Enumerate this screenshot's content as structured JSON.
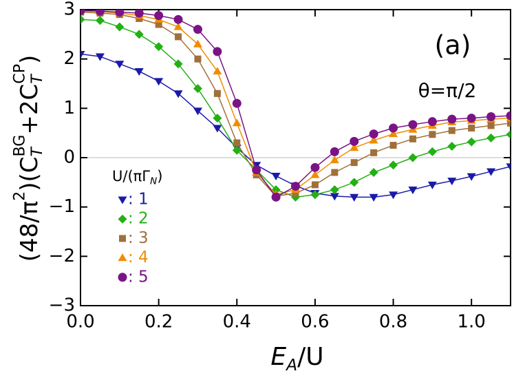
{
  "chart_data": {
    "type": "line",
    "x_label": "E_{A}/U",
    "y_label": "(48/π^{2})(C_{T}^{BG}+2C_{T}^{CP})",
    "annotations": [
      "(a)",
      "θ=π/2"
    ],
    "legend_title": "U/(πΓ_{N})",
    "x": [
      0,
      0.05,
      0.1,
      0.15,
      0.2,
      0.25,
      0.3,
      0.35,
      0.4,
      0.45,
      0.5,
      0.55,
      0.6,
      0.65,
      0.7,
      0.75,
      0.8,
      0.85,
      0.9,
      0.95,
      1.0,
      1.05,
      1.1
    ],
    "series": [
      {
        "name": ": 1",
        "color": "#1a1aa8",
        "marker": "triangle-down",
        "values": [
          2.1,
          2.05,
          1.9,
          1.75,
          1.55,
          1.3,
          0.95,
          0.6,
          0.2,
          -0.15,
          -0.37,
          -0.57,
          -0.72,
          -0.78,
          -0.8,
          -0.8,
          -0.75,
          -0.65,
          -0.55,
          -0.47,
          -0.38,
          -0.28,
          -0.18
        ]
      },
      {
        "name": ": 2",
        "color": "#22b014",
        "marker": "diamond",
        "values": [
          2.8,
          2.78,
          2.65,
          2.5,
          2.25,
          1.9,
          1.4,
          0.8,
          0.15,
          -0.25,
          -0.65,
          -0.8,
          -0.75,
          -0.65,
          -0.5,
          -0.3,
          -0.15,
          0.0,
          0.12,
          0.23,
          0.32,
          0.4,
          0.47
        ]
      },
      {
        "name": ": 3",
        "color": "#a0703a",
        "marker": "square",
        "values": [
          2.95,
          2.93,
          2.9,
          2.82,
          2.7,
          2.45,
          2.0,
          1.3,
          0.3,
          -0.35,
          -0.78,
          -0.72,
          -0.55,
          -0.3,
          -0.1,
          0.1,
          0.25,
          0.38,
          0.47,
          0.55,
          0.6,
          0.65,
          0.7
        ]
      },
      {
        "name": ": 4",
        "color": "#f08c00",
        "marker": "triangle-up",
        "values": [
          2.97,
          2.96,
          2.93,
          2.88,
          2.8,
          2.65,
          2.3,
          1.75,
          0.7,
          -0.3,
          -0.75,
          -0.65,
          -0.35,
          -0.05,
          0.2,
          0.35,
          0.48,
          0.57,
          0.65,
          0.72,
          0.75,
          0.78,
          0.8
        ]
      },
      {
        "name": ": 5",
        "color": "#7a1486",
        "marker": "circle",
        "values": [
          2.98,
          2.97,
          2.95,
          2.93,
          2.88,
          2.8,
          2.6,
          2.15,
          1.1,
          -0.25,
          -0.8,
          -0.58,
          -0.2,
          0.12,
          0.33,
          0.48,
          0.6,
          0.67,
          0.73,
          0.78,
          0.8,
          0.83,
          0.85
        ]
      }
    ],
    "xlim": [
      0,
      1.1
    ],
    "ylim": [
      -3,
      3
    ],
    "xticks": [
      {
        "value": 0,
        "label": "0.0"
      },
      0.2,
      0.4,
      0.6,
      0.8,
      {
        "value": 1,
        "label": "1.0"
      }
    ],
    "yticks": [
      {
        "value": -3,
        "label": "−3"
      },
      {
        "value": -2,
        "label": "−2"
      },
      {
        "value": -1,
        "label": "−1"
      },
      0,
      1,
      2,
      3
    ],
    "zero_line": true,
    "legend": "left"
  }
}
